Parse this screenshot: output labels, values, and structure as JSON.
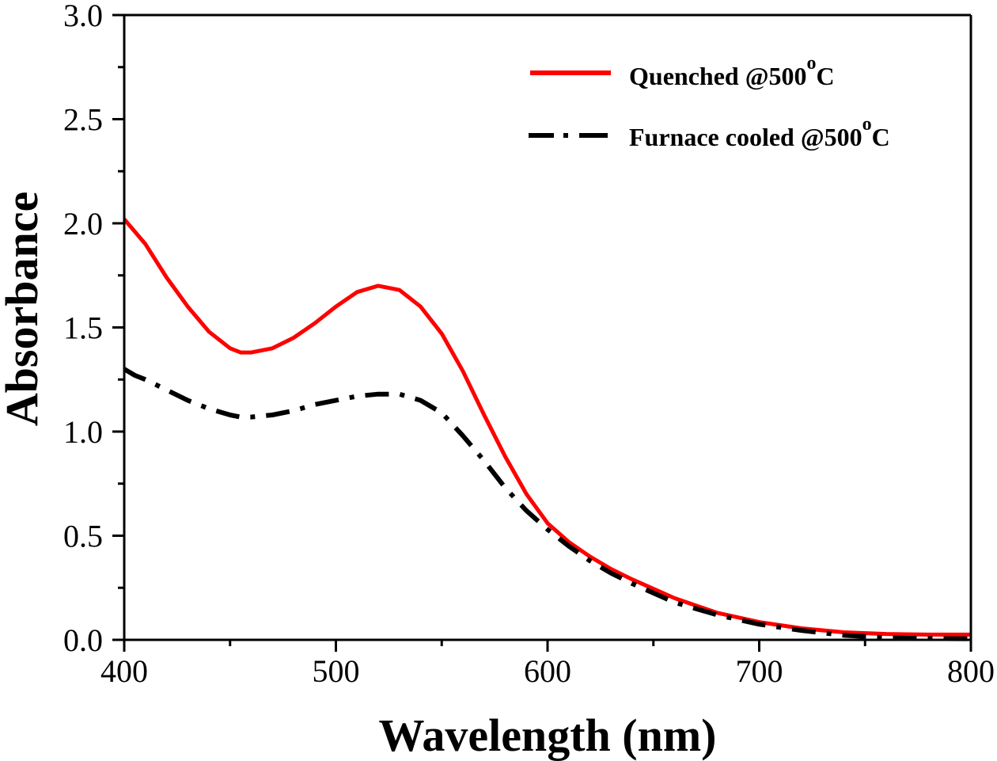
{
  "chart_data": {
    "type": "line",
    "title": "",
    "xlabel": "Wavelength (nm)",
    "ylabel": "Absorbance",
    "xlim": [
      400,
      800
    ],
    "ylim": [
      0.0,
      3.0
    ],
    "x_ticks": [
      "400",
      "500",
      "600",
      "700",
      "800"
    ],
    "x_tick_values": [
      400,
      500,
      600,
      700,
      800
    ],
    "x_minor_step": 50,
    "y_ticks": [
      "0.0",
      "0.5",
      "1.0",
      "1.5",
      "2.0",
      "2.5",
      "3.0"
    ],
    "y_tick_values": [
      0.0,
      0.5,
      1.0,
      1.5,
      2.0,
      2.5,
      3.0
    ],
    "y_minor_step": 0.25,
    "grid": false,
    "legend_position": "top-right",
    "series": [
      {
        "name": "Quenched @500",
        "name_sup": "o",
        "name_suffix": "C",
        "color": "#ff0000",
        "style": "solid",
        "x": [
          400,
          405,
          410,
          420,
          430,
          440,
          450,
          455,
          460,
          470,
          480,
          490,
          500,
          510,
          520,
          530,
          540,
          550,
          560,
          570,
          580,
          590,
          600,
          610,
          620,
          630,
          640,
          660,
          680,
          700,
          720,
          740,
          760,
          780,
          800
        ],
        "y": [
          2.02,
          1.96,
          1.9,
          1.74,
          1.6,
          1.48,
          1.4,
          1.38,
          1.38,
          1.4,
          1.45,
          1.52,
          1.6,
          1.67,
          1.7,
          1.68,
          1.6,
          1.47,
          1.29,
          1.08,
          0.88,
          0.7,
          0.56,
          0.47,
          0.4,
          0.34,
          0.29,
          0.2,
          0.13,
          0.085,
          0.055,
          0.036,
          0.028,
          0.025,
          0.025
        ]
      },
      {
        "name": "Furnace cooled @500",
        "name_sup": "o",
        "name_suffix": "C",
        "color": "#000000",
        "style": "dash-dot",
        "x": [
          400,
          405,
          410,
          420,
          430,
          440,
          450,
          455,
          460,
          470,
          480,
          490,
          500,
          510,
          520,
          530,
          540,
          550,
          560,
          570,
          580,
          590,
          600,
          610,
          620,
          630,
          640,
          660,
          680,
          700,
          720,
          740,
          760,
          780,
          800
        ],
        "y": [
          1.3,
          1.27,
          1.25,
          1.2,
          1.15,
          1.11,
          1.08,
          1.07,
          1.07,
          1.08,
          1.1,
          1.13,
          1.15,
          1.17,
          1.18,
          1.18,
          1.15,
          1.09,
          0.98,
          0.86,
          0.73,
          0.62,
          0.53,
          0.45,
          0.38,
          0.32,
          0.27,
          0.18,
          0.12,
          0.075,
          0.045,
          0.022,
          0.01,
          0.006,
          0.005
        ]
      }
    ]
  }
}
